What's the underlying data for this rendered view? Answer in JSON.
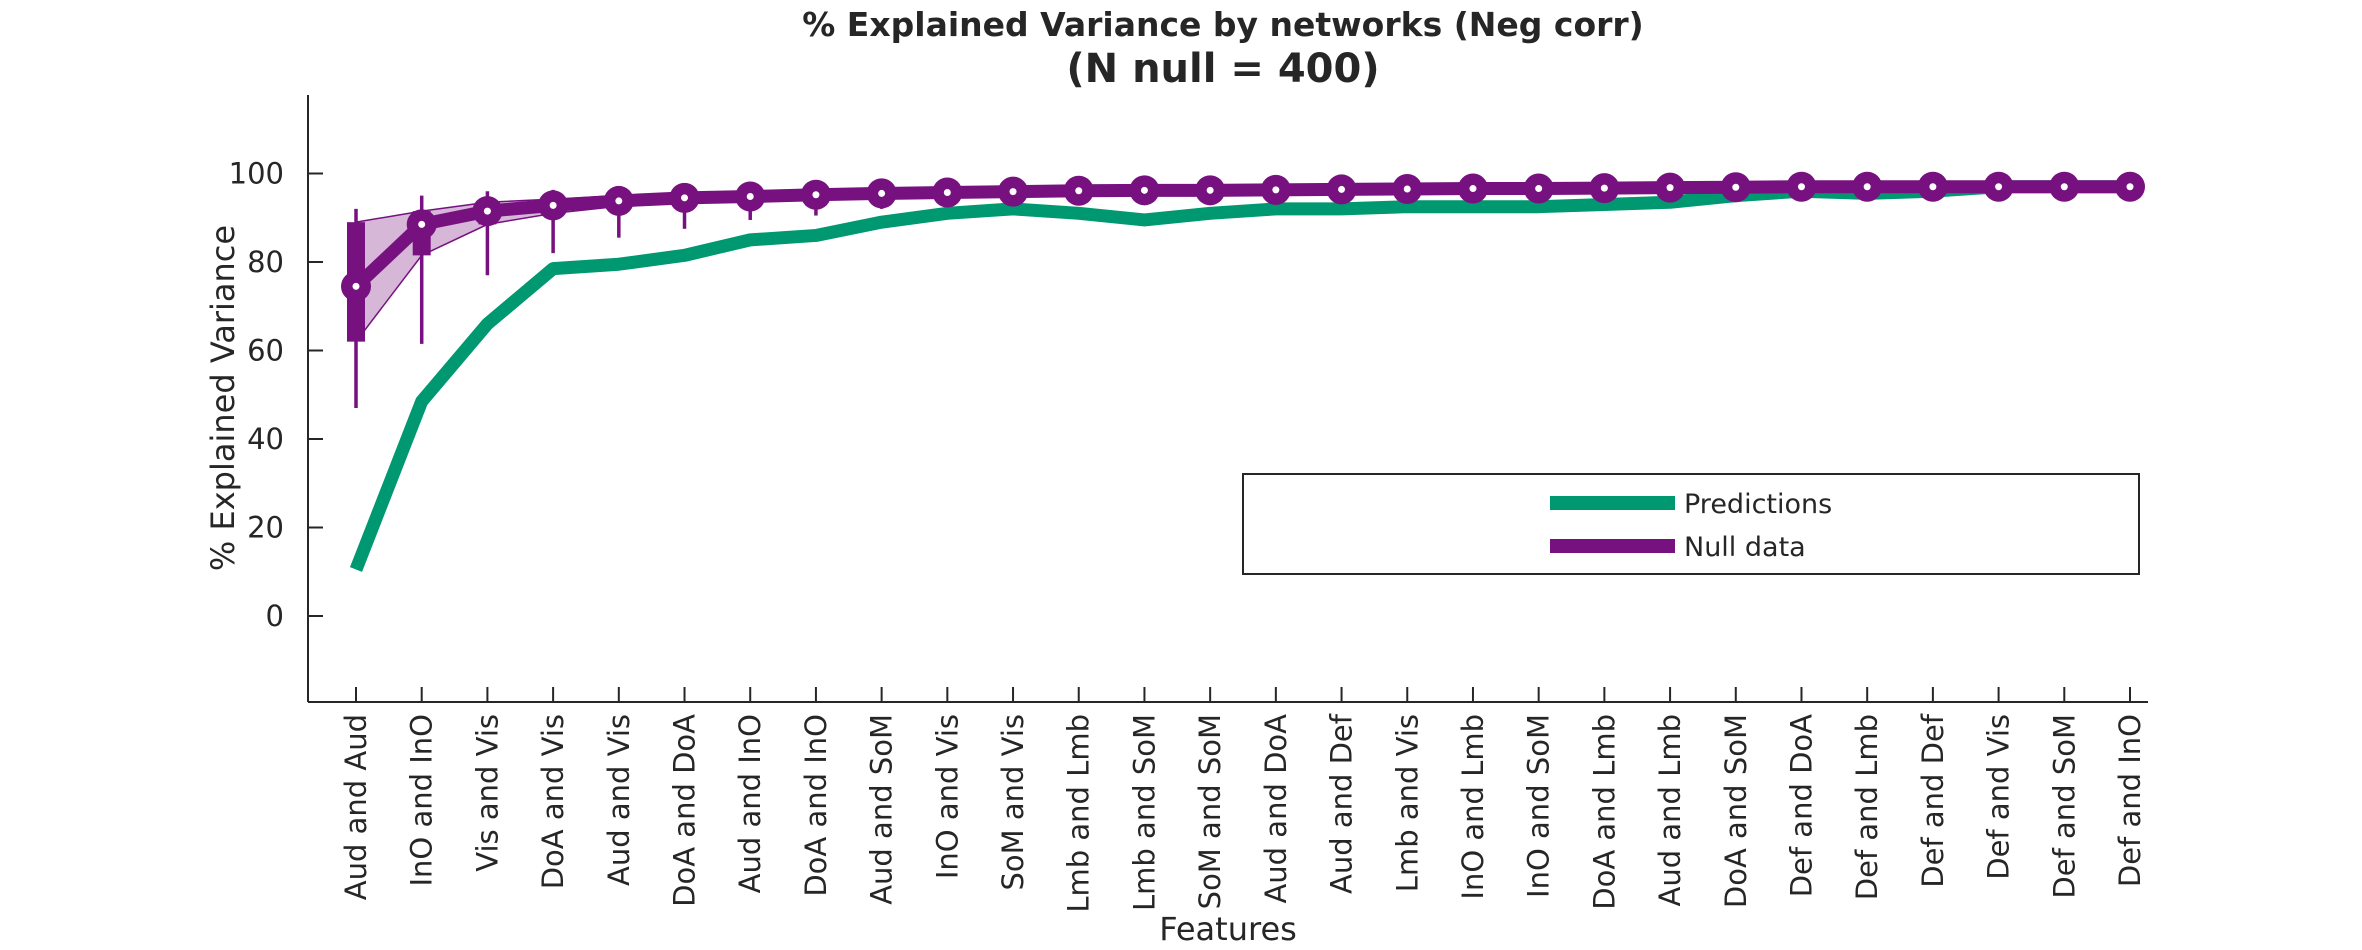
{
  "chart_data": {
    "type": "line",
    "title": "% Explained Variance by networks (Neg corr)",
    "subtitle": "(N null = 400)",
    "xlabel": "Features",
    "ylabel": "% Explained Variance",
    "ylim": [
      -20,
      118
    ],
    "yticks": [
      0,
      20,
      40,
      60,
      80,
      100
    ],
    "grid": false,
    "legend_position": "center-right",
    "categories": [
      "Aud and Aud",
      "InO and InO",
      "Vis and Vis",
      "DoA and Vis",
      "Aud and Vis",
      "DoA and DoA",
      "Aud and InO",
      "DoA and InO",
      "Aud and SoM",
      "InO and Vis",
      "SoM and Vis",
      "Lmb and Lmb",
      "Lmb and SoM",
      "SoM and SoM",
      "Aud and DoA",
      "Aud and Def",
      "Lmb and Vis",
      "InO and Lmb",
      "InO and SoM",
      "DoA and Lmb",
      "Aud and Lmb",
      "DoA and SoM",
      "Def and DoA",
      "Def and Lmb",
      "Def and Def",
      "Def and Vis",
      "Def and SoM",
      "Def and InO"
    ],
    "series": [
      {
        "name": "Predictions",
        "color": "#009870",
        "values": [
          10.5,
          48.5,
          66,
          78.5,
          79.5,
          81.5,
          85,
          86,
          89,
          91,
          92,
          91,
          89.5,
          91,
          92,
          92,
          92.5,
          92.5,
          92.5,
          93,
          93.5,
          95,
          96,
          95.5,
          96,
          97,
          97,
          97
        ]
      },
      {
        "name": "Null data",
        "color": "#76117f",
        "values": [
          74.5,
          88.5,
          91.5,
          92.8,
          93.8,
          94.5,
          94.8,
          95.2,
          95.5,
          95.7,
          95.9,
          96.1,
          96.2,
          96.2,
          96.3,
          96.4,
          96.5,
          96.6,
          96.6,
          96.7,
          96.8,
          96.9,
          97,
          97,
          97,
          97,
          97,
          97
        ],
        "box_q1": [
          62,
          81.5,
          88.5,
          91,
          92.6,
          93.6,
          94,
          94.6,
          95,
          95.2,
          95.5,
          95.7,
          95.9,
          95.9,
          96,
          96.1,
          96.2,
          96.3,
          96.3,
          96.4,
          96.5,
          96.6,
          96.7,
          96.7,
          96.7,
          96.8,
          96.8,
          96.8
        ],
        "box_q3": [
          89,
          91.5,
          93.5,
          94.2,
          95,
          95.4,
          95.6,
          95.9,
          96,
          96.1,
          96.3,
          96.5,
          96.5,
          96.5,
          96.6,
          96.7,
          96.8,
          96.9,
          96.9,
          97,
          97.1,
          97.2,
          97.3,
          97.3,
          97.3,
          97.3,
          97.3,
          97.3
        ],
        "whisker_low": [
          47,
          61.5,
          77,
          82,
          85.5,
          87.5,
          89.5,
          90.5,
          92,
          93,
          93.5,
          94,
          94.3,
          94.5,
          94.7,
          94.8,
          95,
          95.1,
          95.2,
          95.3,
          95.4,
          95.5,
          95.6,
          95.7,
          95.8,
          95.9,
          95.9,
          96
        ],
        "whisker_high": [
          92,
          95,
          96,
          96.3,
          96.5,
          96.7,
          96.9,
          97,
          97.1,
          97.2,
          97.3,
          97.4,
          97.5,
          97.5,
          97.6,
          97.6,
          97.7,
          97.7,
          97.8,
          97.8,
          97.9,
          97.9,
          98,
          98,
          98,
          98,
          98,
          98
        ]
      }
    ]
  }
}
